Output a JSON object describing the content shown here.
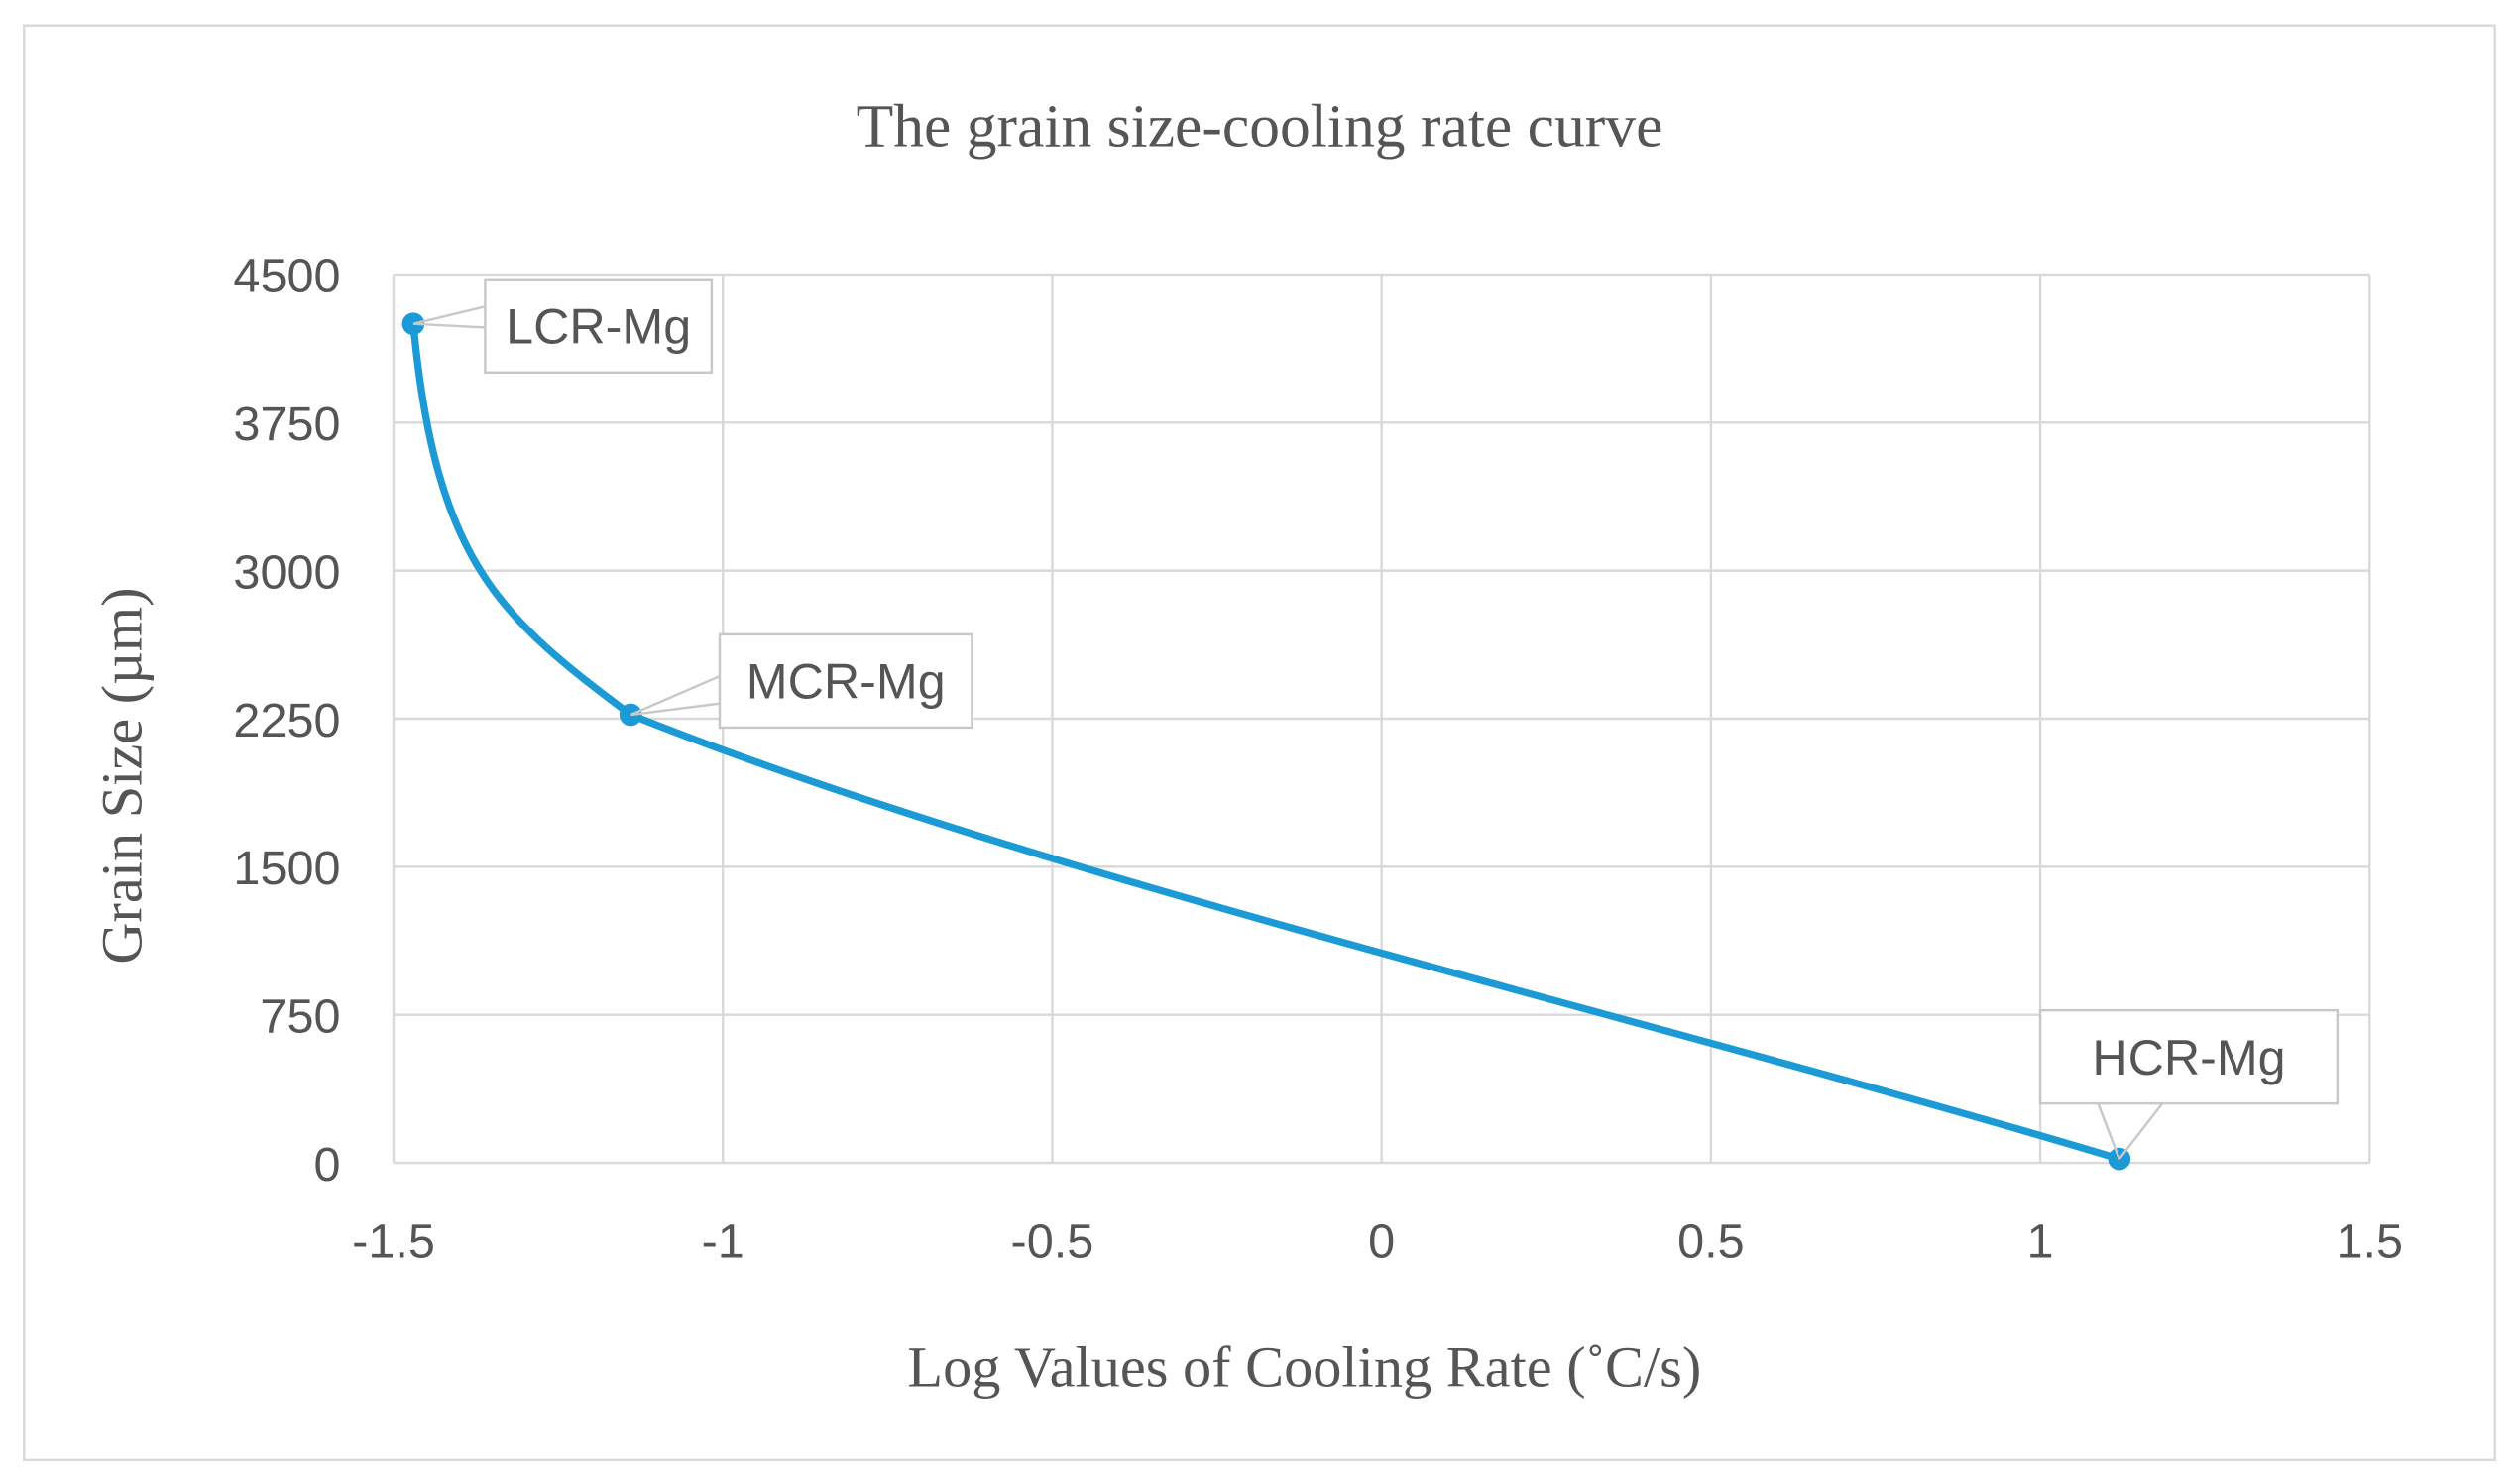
{
  "chart_data": {
    "type": "line",
    "title": "The grain size-cooling rate curve",
    "xlabel": "Log Values of Cooling Rate (˚C/s)",
    "ylabel": "Grain Size (µm)",
    "xlim": [
      -1.5,
      1.5
    ],
    "ylim": [
      0,
      4500
    ],
    "xticks": [
      -1.5,
      -1,
      -0.5,
      0,
      0.5,
      1,
      1.5
    ],
    "xtick_labels": [
      "-1.5",
      "-1",
      "-0.5",
      "0",
      "0.5",
      "1",
      "1.5"
    ],
    "yticks": [
      0,
      750,
      1500,
      2250,
      3000,
      3750,
      4500
    ],
    "ytick_labels": [
      "0",
      "750",
      "1500",
      "2250",
      "3000",
      "3750",
      "4500"
    ],
    "grid": true,
    "line_style": "smoothed",
    "series": [
      {
        "name": "Grain size",
        "color": "#1b9ad6",
        "points": [
          {
            "x": -1.47,
            "y": 4250,
            "label": "LCR-Mg"
          },
          {
            "x": -1.14,
            "y": 2270,
            "label": "MCR-Mg"
          },
          {
            "x": 1.12,
            "y": 20,
            "label": "HCR-Mg"
          }
        ]
      }
    ]
  }
}
